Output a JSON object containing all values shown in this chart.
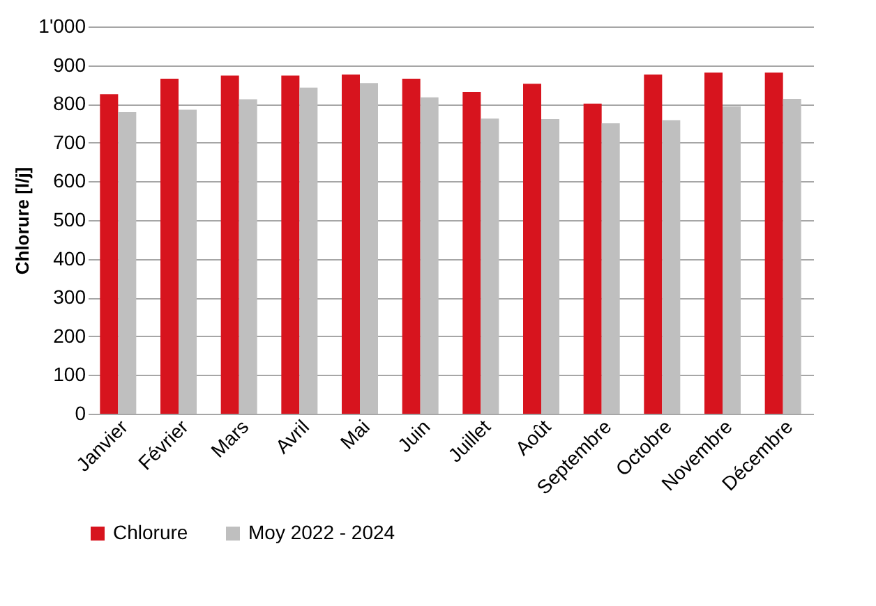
{
  "chart_data": {
    "type": "bar",
    "ylabel": "Chlorure [l/j]",
    "categories": [
      "Janvier",
      "Février",
      "Mars",
      "Avril",
      "Mai",
      "Juin",
      "Juillet",
      "Août",
      "Septembre",
      "Octobre",
      "Novembre",
      "Décembre"
    ],
    "series": [
      {
        "name": "Chlorure",
        "color": "#d7141e",
        "values": [
          825,
          865,
          873,
          873,
          876,
          865,
          831,
          852,
          801,
          876,
          881,
          881
        ]
      },
      {
        "name": "Moy 2022 - 2024",
        "color": "#bfbfbf",
        "values": [
          779,
          785,
          812,
          842,
          854,
          817,
          762,
          761,
          750,
          758,
          794,
          813
        ]
      }
    ],
    "ylim": [
      0,
      1000
    ],
    "yticks": [
      0,
      100,
      200,
      300,
      400,
      500,
      600,
      700,
      800,
      900,
      {
        "value": 1000,
        "label": "1'000"
      }
    ],
    "grid": "y",
    "legend": "bottom"
  }
}
